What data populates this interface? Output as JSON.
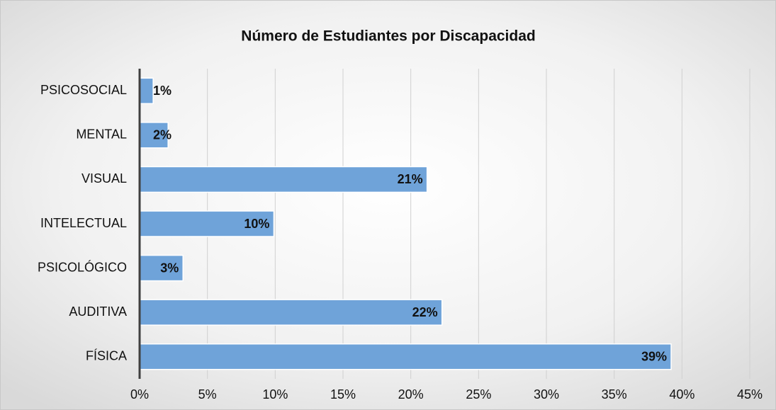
{
  "chart_data": {
    "type": "barh",
    "title": "Número de Estudiantes por Discapacidad",
    "categories": [
      "PSICOSOCIAL",
      "MENTAL",
      "VISUAL",
      "INTELECTUAL",
      "PSICOLÓGICO",
      "AUDITIVA",
      "FÍSICA"
    ],
    "values": [
      1.0,
      2.1,
      21.2,
      9.9,
      3.2,
      22.3,
      39.2
    ],
    "value_labels": [
      "1%",
      "2%",
      "21%",
      "10%",
      "3%",
      "22%",
      "39%"
    ],
    "color": "#6fa3d9",
    "xlim": [
      0,
      45
    ],
    "xticks": [
      {
        "value": 0,
        "label": "0%"
      },
      {
        "value": 5,
        "label": "5%"
      },
      {
        "value": 10,
        "label": "10%"
      },
      {
        "value": 15,
        "label": "15%"
      },
      {
        "value": 20,
        "label": "20%"
      },
      {
        "value": 25,
        "label": "25%"
      },
      {
        "value": 30,
        "label": "30%"
      },
      {
        "value": 35,
        "label": "35%"
      },
      {
        "value": 40,
        "label": "40%"
      },
      {
        "value": 45,
        "label": "45%"
      }
    ],
    "grid": true
  }
}
